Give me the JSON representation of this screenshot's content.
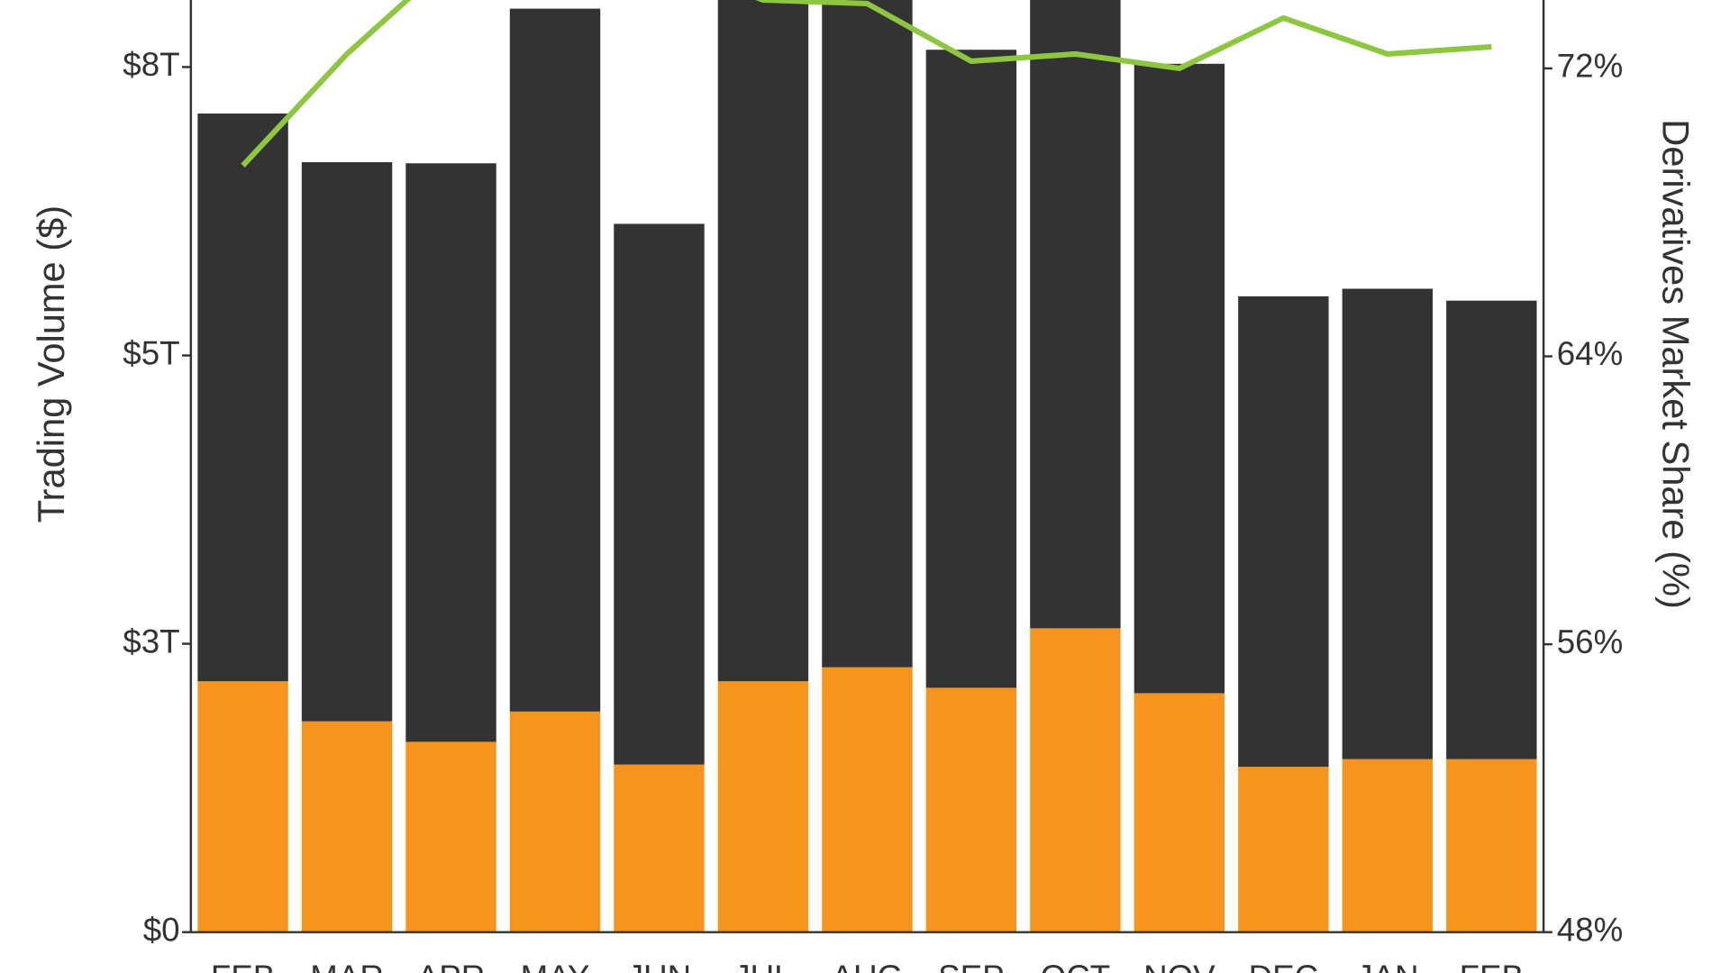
{
  "chart_data": {
    "type": "bar",
    "stacked": true,
    "y_label": "Trading Volume ($)",
    "y2_label": "Derivatives Market Share (%)",
    "categories": [
      "FEB",
      "MAR",
      "APR",
      "MAY",
      "JUN",
      "JUL",
      "AUG",
      "SEP",
      "OCT",
      "NOV",
      "DEC",
      "JAN",
      "FEB"
    ],
    "series": [
      {
        "color": "#f7941d",
        "values": [
          2.32,
          1.95,
          1.76,
          2.04,
          1.55,
          2.32,
          2.45,
          2.26,
          2.81,
          2.21,
          1.53,
          1.6,
          1.6
        ]
      },
      {
        "color": "#333333",
        "values": [
          5.25,
          5.17,
          5.35,
          6.5,
          5.0,
          6.58,
          6.55,
          5.9,
          6.19,
          5.82,
          4.35,
          4.35,
          4.24
        ]
      },
      {
        "type": "line",
        "axis": "y2",
        "color": "#8dc63f",
        "values": [
          69.3,
          72.4,
          75,
          76,
          75,
          73.9,
          73.8,
          72.2,
          72.4,
          72.0,
          73.4,
          72.4,
          72.6
        ]
      }
    ],
    "ylim": [
      0,
      8.62
    ],
    "yticks": [
      {
        "value": 0,
        "label": "$0"
      },
      {
        "value": 2.667,
        "label": "$3T"
      },
      {
        "value": 5.333,
        "label": "$5T"
      },
      {
        "value": 8,
        "label": "$8T"
      }
    ],
    "y2lim": [
      48,
      73.9
    ],
    "y2ticks": [
      {
        "value": 48,
        "label": "48%"
      },
      {
        "value": 56,
        "label": "56%"
      },
      {
        "value": 64,
        "label": "64%"
      },
      {
        "value": 72,
        "label": "72%"
      }
    ]
  }
}
